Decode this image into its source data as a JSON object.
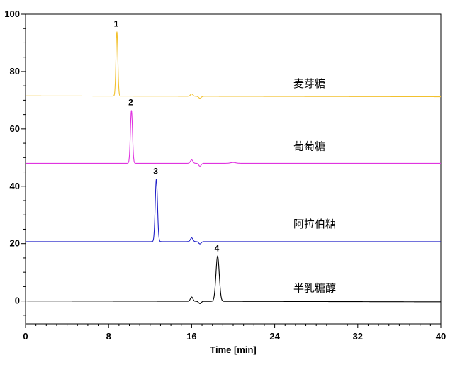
{
  "chart_data": {
    "type": "line",
    "title": "",
    "xlabel": "Time [min]",
    "ylabel": "",
    "xlim": [
      0,
      40
    ],
    "ylim": [
      -8,
      100
    ],
    "xticks": [
      0,
      8,
      16,
      24,
      32,
      40
    ],
    "yticks": [
      0,
      20,
      40,
      60,
      80,
      100
    ],
    "xtick_labels": [
      "0",
      "8",
      "16",
      "24",
      "32",
      "40"
    ],
    "ytick_labels": [
      "0",
      "20",
      "40",
      "60",
      "80",
      "100"
    ],
    "grid": false,
    "series": [
      {
        "name": "麦芽糖",
        "color": "#f2c12e",
        "baseline": 71.5,
        "end_baseline": 71.2,
        "peak_label": "1",
        "peaks": [
          {
            "rt": 8.8,
            "height": 22.5,
            "width": 0.09
          },
          {
            "rt": 16.0,
            "height": 0.8,
            "width": 0.12
          },
          {
            "rt": 16.8,
            "height": -0.7,
            "width": 0.12
          }
        ]
      },
      {
        "name": "葡萄糖",
        "color": "#e034e0",
        "baseline": 48.0,
        "end_baseline": 48.0,
        "peak_label": "2",
        "peaks": [
          {
            "rt": 10.2,
            "height": 18.5,
            "width": 0.1
          },
          {
            "rt": 16.0,
            "height": 1.2,
            "width": 0.12
          },
          {
            "rt": 16.8,
            "height": -1.0,
            "width": 0.12
          },
          {
            "rt": 20.0,
            "height": 0.3,
            "width": 0.25
          }
        ]
      },
      {
        "name": "阿拉伯糖",
        "color": "#1f1fc8",
        "baseline": 20.7,
        "end_baseline": 20.7,
        "peak_label": "3",
        "peaks": [
          {
            "rt": 12.6,
            "height": 21.8,
            "width": 0.11
          },
          {
            "rt": 16.0,
            "height": 1.3,
            "width": 0.12
          },
          {
            "rt": 16.8,
            "height": -0.8,
            "width": 0.12
          }
        ]
      },
      {
        "name": "半乳糖醇",
        "color": "#000000",
        "baseline": 0.0,
        "end_baseline": -0.3,
        "peak_label": "4",
        "peaks": [
          {
            "rt": 16.0,
            "height": 1.5,
            "width": 0.12
          },
          {
            "rt": 16.8,
            "height": -0.8,
            "width": 0.12
          },
          {
            "rt": 18.5,
            "height": 15.8,
            "width": 0.16
          }
        ]
      }
    ]
  }
}
